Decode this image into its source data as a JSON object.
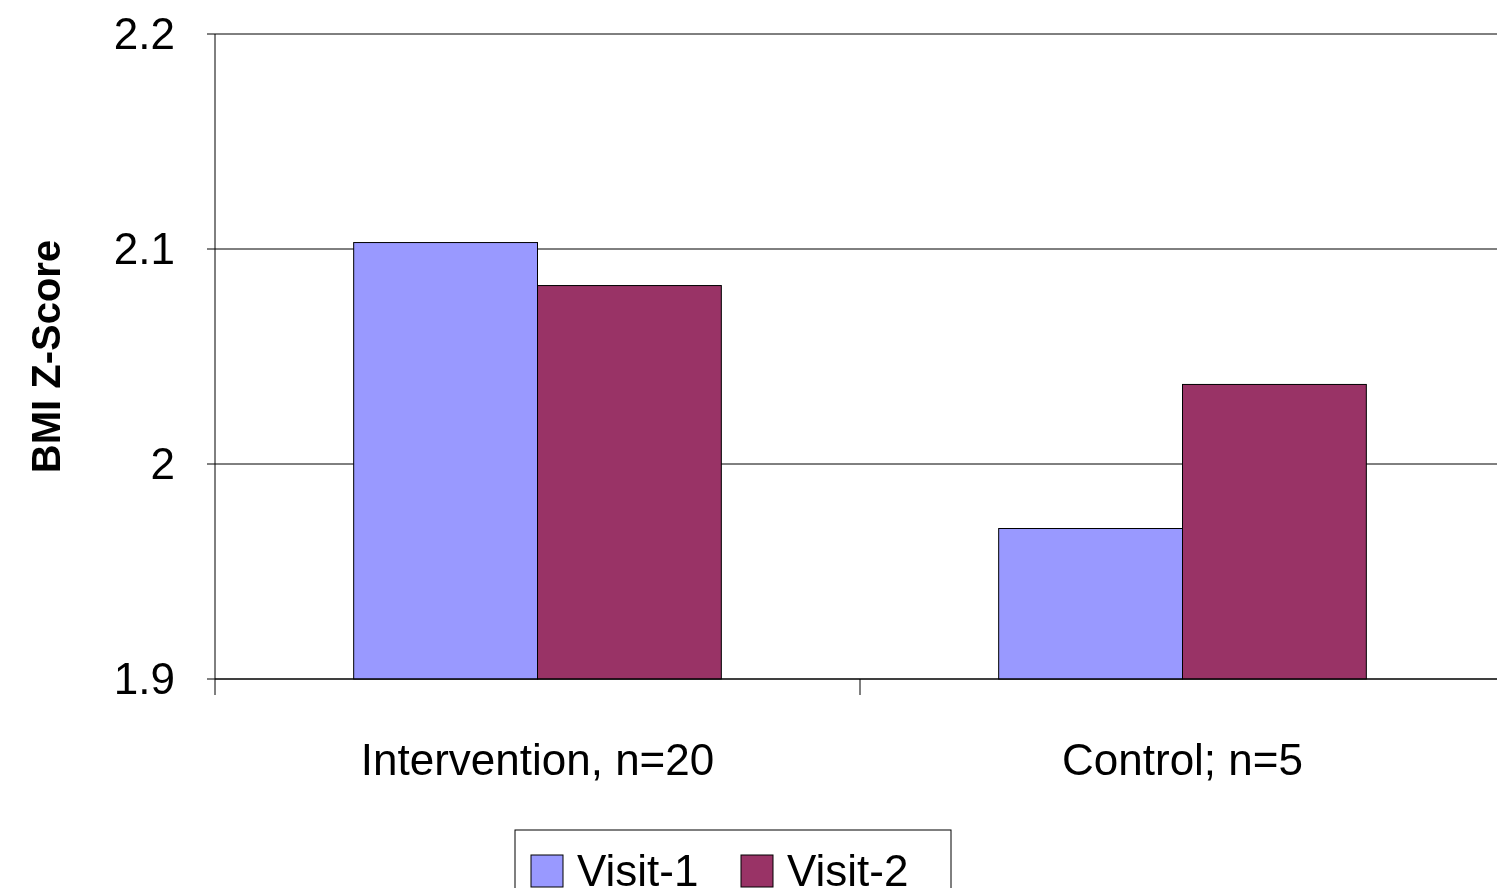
{
  "chart_data": {
    "type": "bar",
    "ylabel": "BMI Z-Score",
    "categories": [
      "Intervention, n=20",
      "Control; n=5"
    ],
    "series": [
      {
        "name": "Visit-1",
        "color": "#9999ff",
        "values": [
          2.103,
          1.97
        ]
      },
      {
        "name": "Visit-2",
        "color": "#993366",
        "values": [
          2.083,
          2.037
        ]
      }
    ],
    "ylim": [
      1.9,
      2.2
    ],
    "yticks": [
      1.9,
      {
        "value": 2,
        "label": "2"
      },
      2.1,
      2.2
    ],
    "grid": "y",
    "legend": "bottom"
  }
}
